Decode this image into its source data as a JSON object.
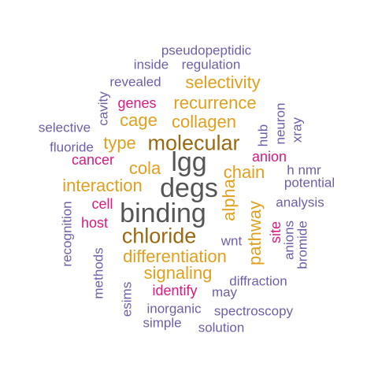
{
  "palette": {
    "gray": "#555555",
    "brown": "#9a6a12",
    "orange": "#e0a01e",
    "magenta": "#d61a7f",
    "purple": "#6f5fa8"
  },
  "words": [
    {
      "text": "pseudopeptidic",
      "color": "purple",
      "size": "s"
    },
    {
      "text": "inside",
      "color": "purple",
      "size": "s"
    },
    {
      "text": "regulation",
      "color": "purple",
      "size": "s"
    },
    {
      "text": "revealed",
      "color": "purple",
      "size": "s"
    },
    {
      "text": "selectivity",
      "color": "orange",
      "size": "m"
    },
    {
      "text": "cavity",
      "color": "purple",
      "size": "s",
      "vertical": true
    },
    {
      "text": "genes",
      "color": "magenta",
      "size": "s"
    },
    {
      "text": "recurrence",
      "color": "orange",
      "size": "m"
    },
    {
      "text": "selective",
      "color": "purple",
      "size": "s"
    },
    {
      "text": "cage",
      "color": "orange",
      "size": "m"
    },
    {
      "text": "collagen",
      "color": "orange",
      "size": "m"
    },
    {
      "text": "neuron",
      "color": "purple",
      "size": "s",
      "vertical": true
    },
    {
      "text": "xray",
      "color": "purple",
      "size": "s",
      "vertical": true
    },
    {
      "text": "hub",
      "color": "purple",
      "size": "s",
      "vertical": true
    },
    {
      "text": "fluoride",
      "color": "purple",
      "size": "s"
    },
    {
      "text": "type",
      "color": "orange",
      "size": "m"
    },
    {
      "text": "molecular",
      "color": "brown",
      "size": "l"
    },
    {
      "text": "cancer",
      "color": "magenta",
      "size": "s"
    },
    {
      "text": "anion",
      "color": "magenta",
      "size": "s"
    },
    {
      "text": "lgg",
      "color": "gray",
      "size": "xl"
    },
    {
      "text": "cola",
      "color": "orange",
      "size": "m"
    },
    {
      "text": "chain",
      "color": "orange",
      "size": "m"
    },
    {
      "text": "h nmr",
      "color": "purple",
      "size": "s"
    },
    {
      "text": "potential",
      "color": "purple",
      "size": "s"
    },
    {
      "text": "interaction",
      "color": "orange",
      "size": "m"
    },
    {
      "text": "degs",
      "color": "gray",
      "size": "xl"
    },
    {
      "text": "alpha",
      "color": "orange",
      "size": "m",
      "vertical": true
    },
    {
      "text": "analysis",
      "color": "purple",
      "size": "s"
    },
    {
      "text": "cell",
      "color": "magenta",
      "size": "s"
    },
    {
      "text": "binding",
      "color": "gray",
      "size": "xl"
    },
    {
      "text": "recognition",
      "color": "purple",
      "size": "s",
      "vertical": true
    },
    {
      "text": "host",
      "color": "magenta",
      "size": "s"
    },
    {
      "text": "pathway",
      "color": "orange",
      "size": "m",
      "vertical": true
    },
    {
      "text": "site",
      "color": "magenta",
      "size": "s",
      "vertical": true
    },
    {
      "text": "anions",
      "color": "purple",
      "size": "s",
      "vertical": true
    },
    {
      "text": "bromide",
      "color": "purple",
      "size": "s",
      "vertical": true
    },
    {
      "text": "chloride",
      "color": "brown",
      "size": "l"
    },
    {
      "text": "wnt",
      "color": "purple",
      "size": "s"
    },
    {
      "text": "differentiation",
      "color": "orange",
      "size": "m"
    },
    {
      "text": "methods",
      "color": "purple",
      "size": "s",
      "vertical": true
    },
    {
      "text": "signaling",
      "color": "orange",
      "size": "m"
    },
    {
      "text": "diffraction",
      "color": "purple",
      "size": "s"
    },
    {
      "text": "esims",
      "color": "purple",
      "size": "s",
      "vertical": true
    },
    {
      "text": "identify",
      "color": "magenta",
      "size": "s"
    },
    {
      "text": "may",
      "color": "purple",
      "size": "s"
    },
    {
      "text": "inorganic",
      "color": "purple",
      "size": "s"
    },
    {
      "text": "spectroscopy",
      "color": "purple",
      "size": "s"
    },
    {
      "text": "simple",
      "color": "purple",
      "size": "s"
    },
    {
      "text": "solution",
      "color": "purple",
      "size": "s"
    }
  ]
}
